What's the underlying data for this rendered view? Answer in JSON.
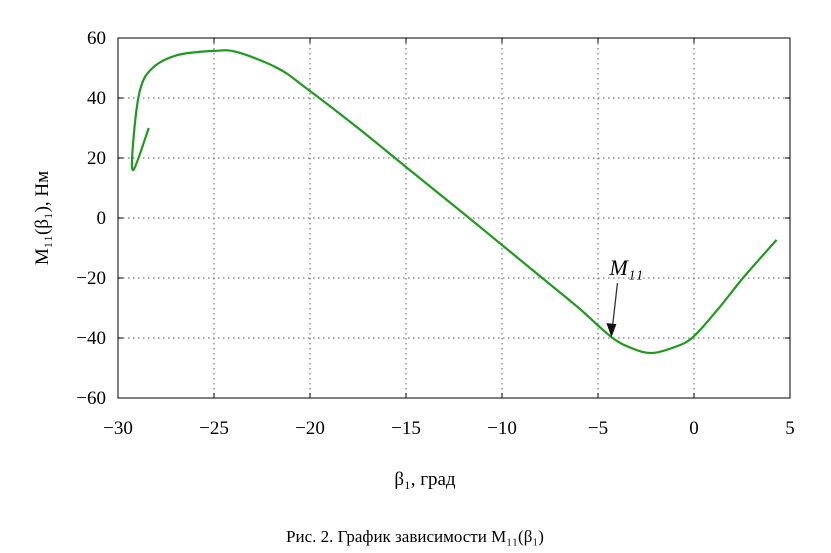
{
  "chart_data": {
    "type": "line",
    "title": "",
    "xlabel": "β₁, град",
    "ylabel": "M₁₁(β₁), Нм",
    "caption": "Рис. 2. График зависимости M₁₁(β₁)",
    "xlim": [
      -30,
      5
    ],
    "ylim": [
      -60,
      60
    ],
    "xticks": [
      -30,
      -25,
      -20,
      -15,
      -10,
      -5,
      0,
      5
    ],
    "yticks": [
      -60,
      -40,
      -20,
      0,
      20,
      40,
      60
    ],
    "xtick_labels": [
      "−30",
      "−25",
      "−20",
      "−15",
      "−10",
      "−5",
      "0",
      "5"
    ],
    "ytick_labels": [
      "−60",
      "−40",
      "−20",
      "0",
      "20",
      "40",
      "60"
    ],
    "grid": true,
    "line_color": "#1e9a1e",
    "series": [
      {
        "x": [
          -28.4,
          -29.2,
          -29.2,
          -28.85,
          -28.2,
          -26.9,
          -25.0,
          -23.8,
          -21.7,
          -20.2,
          -17.5,
          -15.0,
          -12.0,
          -10.0,
          -8.0,
          -6.0,
          -4.3,
          -3.2,
          -2.2,
          -1.0,
          -0.05,
          1.3,
          2.55,
          4.3
        ],
        "y": [
          30,
          16,
          26,
          42.7,
          50,
          54.3,
          55.7,
          55.3,
          50,
          43.3,
          30,
          17,
          1.5,
          -9,
          -19.5,
          -30,
          -39.7,
          -43.5,
          -45,
          -43,
          -39.7,
          -30,
          -20,
          -7.3
        ]
      }
    ],
    "annotations": [
      {
        "text": "M₁₁",
        "x": -4.3,
        "y": -39.7,
        "arrow": true
      }
    ]
  }
}
